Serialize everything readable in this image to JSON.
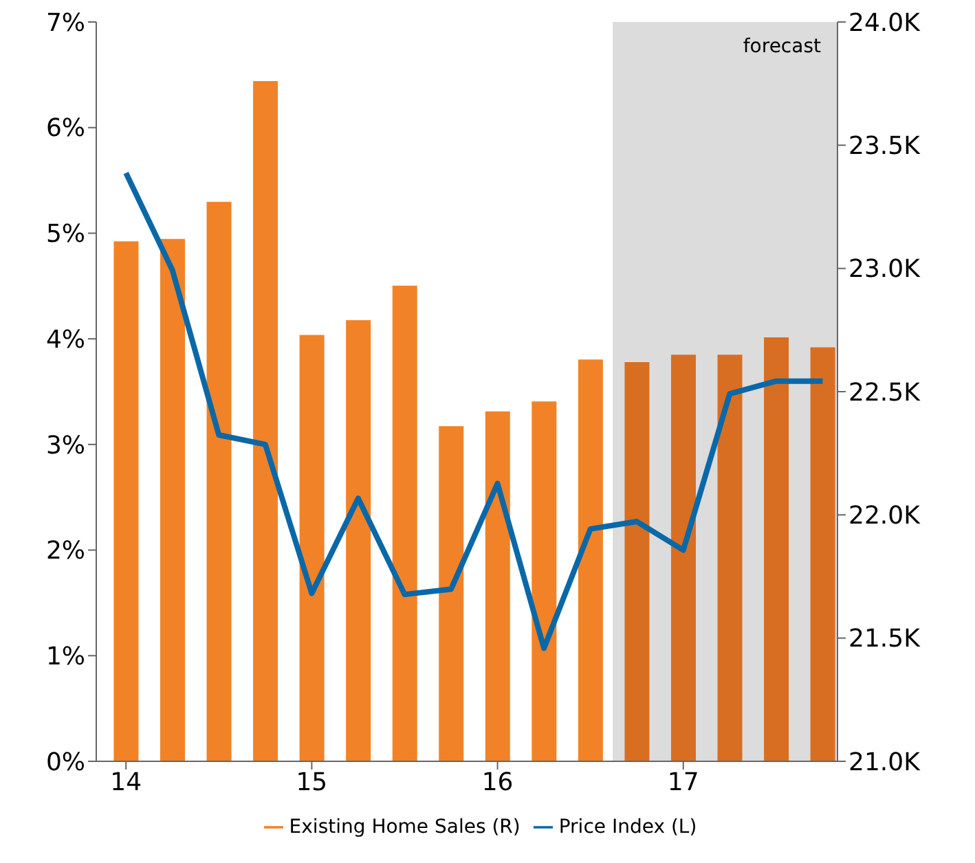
{
  "chart_data": {
    "type": "bar",
    "x": [
      2014,
      2014.25,
      2014.5,
      2014.75,
      2015,
      2015.25,
      2015.5,
      2015.75,
      2016,
      2016.25,
      2016.5,
      2016.75,
      2017,
      2017.25,
      2017.5,
      2017.75
    ],
    "xlim": [
      2013.84,
      2017.83
    ],
    "xticks": [
      {
        "value": 2014,
        "label": "14"
      },
      {
        "value": 2015,
        "label": "15"
      },
      {
        "value": 2016,
        "label": "16"
      },
      {
        "value": 2017,
        "label": "17"
      }
    ],
    "series": [
      {
        "name": "Existing Home Sales (R)",
        "type": "bar",
        "axis": "y2",
        "color": "#f28227",
        "colors": [
          "#f28227",
          "#f28227",
          "#f28227",
          "#f28227",
          "#f28227",
          "#f28227",
          "#f28227",
          "#f28227",
          "#f28227",
          "#f28227",
          "#f28227",
          "#d86e22",
          "#d86e22",
          "#d86e22",
          "#d86e22",
          "#d86e22"
        ],
        "values": [
          23.11,
          23.12,
          23.27,
          23.76,
          22.73,
          22.79,
          22.93,
          22.36,
          22.42,
          22.46,
          22.63,
          22.62,
          22.65,
          22.65,
          22.72,
          22.68
        ]
      },
      {
        "name": "Price Index (L)",
        "type": "line",
        "color": "#0a68a8",
        "values": [
          5.57,
          4.65,
          3.09,
          3.0,
          1.59,
          2.49,
          1.58,
          1.63,
          2.63,
          1.07,
          2.2,
          2.27,
          2.0,
          3.48,
          3.6,
          3.6
        ]
      }
    ],
    "ylim": [
      0,
      7
    ],
    "yticks": [
      {
        "value": 0,
        "label": "0%"
      },
      {
        "value": 1,
        "label": "1%"
      },
      {
        "value": 2,
        "label": "2%"
      },
      {
        "value": 3,
        "label": "3%"
      },
      {
        "value": 4,
        "label": "4%"
      },
      {
        "value": 5,
        "label": "5%"
      },
      {
        "value": 6,
        "label": "6%"
      },
      {
        "value": 7,
        "label": "7%"
      }
    ],
    "y2lim": [
      21,
      24
    ],
    "y2ticks": [
      {
        "value": 21,
        "label": "21.0K"
      },
      {
        "value": 21.5,
        "label": "21.5K"
      },
      {
        "value": 22,
        "label": "22.0K"
      },
      {
        "value": 22.5,
        "label": "22.5K"
      },
      {
        "value": 23,
        "label": "23.0K"
      },
      {
        "value": 23.5,
        "label": "23.5K"
      },
      {
        "value": 24,
        "label": "24.0K"
      }
    ],
    "bands": [
      {
        "axis": "x",
        "from": 2016.62,
        "to": 2017.83,
        "label": "forecast",
        "color": "#dcdcdc"
      }
    ],
    "grid": false,
    "legend": "bottom",
    "marker": "none",
    "line_style": "solid"
  }
}
